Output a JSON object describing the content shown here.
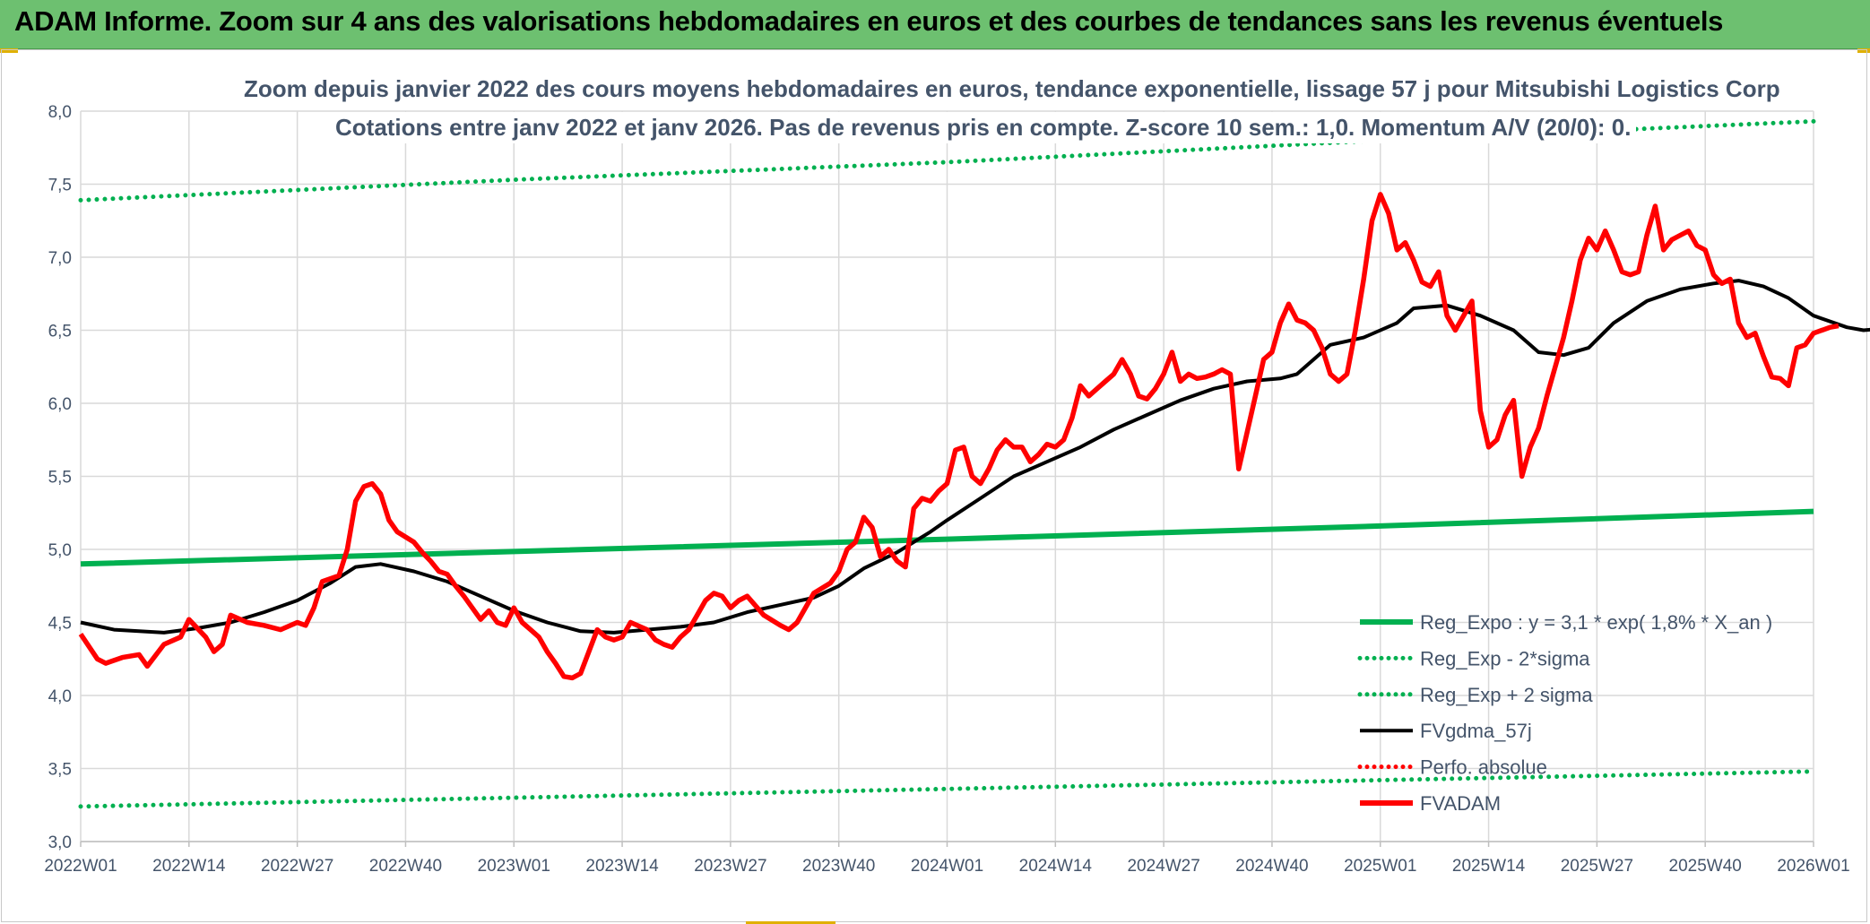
{
  "header": {
    "banner_title": "ADAM Informe. Zoom sur 4 ans des valorisations hebdomadaires en euros et des courbes de tendances sans les revenus éventuels"
  },
  "chart_data": {
    "type": "line",
    "subtitle_line1": "Zoom depuis janvier 2022 des cours moyens hebdomadaires en euros, tendance exponentielle, lissage 57 j pour Mitsubishi Logistics Corp",
    "subtitle_line2": "Cotations entre janv 2022 et janv 2026. Pas de revenus pris en compte. Z-score 10 sem.: 1,0. Momentum A/V (20/0): 0.",
    "ylim": [
      3.0,
      8.0
    ],
    "y_ticks": [
      "3,0",
      "3,5",
      "4,0",
      "4,5",
      "5,0",
      "5,5",
      "6,0",
      "6,5",
      "7,0",
      "7,5",
      "8,0"
    ],
    "x_range_weeks": [
      0,
      208
    ],
    "x_ticks": [
      {
        "label": "2022W01",
        "week": 0
      },
      {
        "label": "2022W14",
        "week": 13
      },
      {
        "label": "2022W27",
        "week": 26
      },
      {
        "label": "2022W40",
        "week": 39
      },
      {
        "label": "2023W01",
        "week": 52
      },
      {
        "label": "2023W14",
        "week": 65
      },
      {
        "label": "2023W27",
        "week": 78
      },
      {
        "label": "2023W40",
        "week": 91
      },
      {
        "label": "2024W01",
        "week": 104
      },
      {
        "label": "2024W14",
        "week": 117
      },
      {
        "label": "2024W27",
        "week": 130
      },
      {
        "label": "2024W40",
        "week": 143
      },
      {
        "label": "2025W01",
        "week": 156
      },
      {
        "label": "2025W14",
        "week": 169
      },
      {
        "label": "2025W27",
        "week": 182
      },
      {
        "label": "2025W40",
        "week": 195
      },
      {
        "label": "2026W01",
        "week": 208
      }
    ],
    "grid": true,
    "legend_position": "bottom-right",
    "legend": [
      {
        "label": "Reg_Expo : y = 3,1 * exp( 1,8% *  X_an )",
        "color": "#00b050",
        "style": "solid"
      },
      {
        "label": "Reg_Exp - 2*sigma",
        "color": "#00b050",
        "style": "dotted"
      },
      {
        "label": "Reg_Exp + 2 sigma",
        "color": "#00b050",
        "style": "dotted"
      },
      {
        "label": "FVgdma_57j",
        "color": "#000000",
        "style": "solid"
      },
      {
        "label": "Perfo. absolue",
        "color": "#ff0000",
        "style": "dotted"
      },
      {
        "label": "FVADAM",
        "color": "#ff0000",
        "style": "solid"
      }
    ],
    "series": [
      {
        "name": "Reg_Expo : y = 3,1 * exp( 1,8% *  X_an )",
        "color": "#00b050",
        "points": [
          [
            0,
            4.9
          ],
          [
            52,
            4.985
          ],
          [
            104,
            5.07
          ],
          [
            156,
            5.16
          ],
          [
            208,
            5.26
          ]
        ]
      },
      {
        "name": "Reg_Exp - 2*sigma",
        "color": "#00b050",
        "points": [
          [
            0,
            3.24
          ],
          [
            52,
            3.3
          ],
          [
            104,
            3.36
          ],
          [
            156,
            3.42
          ],
          [
            208,
            3.48
          ]
        ]
      },
      {
        "name": "Reg_Exp + 2 sigma",
        "color": "#00b050",
        "points": [
          [
            0,
            7.39
          ],
          [
            52,
            7.53
          ],
          [
            104,
            7.65
          ],
          [
            156,
            7.8
          ],
          [
            208,
            7.93
          ]
        ]
      },
      {
        "name": "FVgdma_57j",
        "color": "#000000",
        "points": [
          [
            0,
            4.5
          ],
          [
            4,
            4.45
          ],
          [
            10,
            4.43
          ],
          [
            14,
            4.46
          ],
          [
            18,
            4.5
          ],
          [
            22,
            4.57
          ],
          [
            26,
            4.65
          ],
          [
            30,
            4.77
          ],
          [
            33,
            4.88
          ],
          [
            36,
            4.9
          ],
          [
            40,
            4.85
          ],
          [
            44,
            4.78
          ],
          [
            48,
            4.68
          ],
          [
            52,
            4.58
          ],
          [
            56,
            4.5
          ],
          [
            60,
            4.44
          ],
          [
            64,
            4.43
          ],
          [
            68,
            4.45
          ],
          [
            72,
            4.47
          ],
          [
            76,
            4.5
          ],
          [
            80,
            4.57
          ],
          [
            84,
            4.62
          ],
          [
            88,
            4.67
          ],
          [
            91,
            4.75
          ],
          [
            94,
            4.87
          ],
          [
            98,
            4.98
          ],
          [
            102,
            5.12
          ],
          [
            104,
            5.2
          ],
          [
            108,
            5.35
          ],
          [
            112,
            5.5
          ],
          [
            116,
            5.6
          ],
          [
            120,
            5.7
          ],
          [
            124,
            5.82
          ],
          [
            128,
            5.92
          ],
          [
            132,
            6.02
          ],
          [
            136,
            6.1
          ],
          [
            140,
            6.15
          ],
          [
            144,
            6.17
          ],
          [
            146,
            6.2
          ],
          [
            150,
            6.4
          ],
          [
            154,
            6.45
          ],
          [
            158,
            6.55
          ],
          [
            160,
            6.65
          ],
          [
            164,
            6.67
          ],
          [
            168,
            6.6
          ],
          [
            172,
            6.5
          ],
          [
            175,
            6.35
          ],
          [
            178,
            6.33
          ],
          [
            181,
            6.38
          ],
          [
            184,
            6.55
          ],
          [
            188,
            6.7
          ],
          [
            192,
            6.78
          ],
          [
            196,
            6.82
          ],
          [
            199,
            6.84
          ],
          [
            202,
            6.8
          ],
          [
            205,
            6.72
          ],
          [
            208,
            6.6
          ],
          [
            212,
            6.52
          ],
          [
            214,
            6.5
          ],
          [
            218,
            6.52
          ],
          [
            221,
            6.53
          ]
        ]
      },
      {
        "name": "FVADAM",
        "color": "#ff0000",
        "points": [
          [
            0,
            4.42
          ],
          [
            2,
            4.25
          ],
          [
            3,
            4.22
          ],
          [
            5,
            4.26
          ],
          [
            7,
            4.28
          ],
          [
            8,
            4.2
          ],
          [
            10,
            4.35
          ],
          [
            12,
            4.4
          ],
          [
            13,
            4.52
          ],
          [
            15,
            4.4
          ],
          [
            16,
            4.3
          ],
          [
            17,
            4.35
          ],
          [
            18,
            4.55
          ],
          [
            20,
            4.5
          ],
          [
            22,
            4.48
          ],
          [
            24,
            4.45
          ],
          [
            26,
            4.5
          ],
          [
            27,
            4.48
          ],
          [
            28,
            4.6
          ],
          [
            29,
            4.78
          ],
          [
            31,
            4.82
          ],
          [
            32,
            5.0
          ],
          [
            33,
            5.33
          ],
          [
            34,
            5.43
          ],
          [
            35,
            5.45
          ],
          [
            36,
            5.38
          ],
          [
            37,
            5.2
          ],
          [
            38,
            5.12
          ],
          [
            40,
            5.05
          ],
          [
            41,
            4.98
          ],
          [
            42,
            4.92
          ],
          [
            43,
            4.85
          ],
          [
            44,
            4.83
          ],
          [
            45,
            4.75
          ],
          [
            46,
            4.68
          ],
          [
            47,
            4.6
          ],
          [
            48,
            4.52
          ],
          [
            49,
            4.58
          ],
          [
            50,
            4.5
          ],
          [
            51,
            4.48
          ],
          [
            52,
            4.6
          ],
          [
            53,
            4.5
          ],
          [
            54,
            4.45
          ],
          [
            55,
            4.4
          ],
          [
            56,
            4.3
          ],
          [
            57,
            4.22
          ],
          [
            58,
            4.13
          ],
          [
            59,
            4.12
          ],
          [
            60,
            4.15
          ],
          [
            61,
            4.3
          ],
          [
            62,
            4.45
          ],
          [
            63,
            4.4
          ],
          [
            64,
            4.38
          ],
          [
            65,
            4.4
          ],
          [
            66,
            4.5
          ],
          [
            68,
            4.45
          ],
          [
            69,
            4.38
          ],
          [
            70,
            4.35
          ],
          [
            71,
            4.33
          ],
          [
            72,
            4.4
          ],
          [
            73,
            4.45
          ],
          [
            74,
            4.55
          ],
          [
            75,
            4.65
          ],
          [
            76,
            4.7
          ],
          [
            77,
            4.68
          ],
          [
            78,
            4.6
          ],
          [
            79,
            4.65
          ],
          [
            80,
            4.68
          ],
          [
            82,
            4.55
          ],
          [
            84,
            4.48
          ],
          [
            85,
            4.45
          ],
          [
            86,
            4.5
          ],
          [
            88,
            4.7
          ],
          [
            90,
            4.77
          ],
          [
            91,
            4.85
          ],
          [
            92,
            5.0
          ],
          [
            93,
            5.05
          ],
          [
            94,
            5.22
          ],
          [
            95,
            5.15
          ],
          [
            96,
            4.95
          ],
          [
            97,
            5.0
          ],
          [
            98,
            4.92
          ],
          [
            99,
            4.88
          ],
          [
            100,
            5.28
          ],
          [
            101,
            5.35
          ],
          [
            102,
            5.33
          ],
          [
            103,
            5.4
          ],
          [
            104,
            5.45
          ],
          [
            105,
            5.68
          ],
          [
            106,
            5.7
          ],
          [
            107,
            5.5
          ],
          [
            108,
            5.45
          ],
          [
            109,
            5.55
          ],
          [
            110,
            5.68
          ],
          [
            111,
            5.75
          ],
          [
            112,
            5.7
          ],
          [
            113,
            5.7
          ],
          [
            114,
            5.6
          ],
          [
            115,
            5.65
          ],
          [
            116,
            5.72
          ],
          [
            117,
            5.7
          ],
          [
            118,
            5.75
          ],
          [
            119,
            5.9
          ],
          [
            120,
            6.12
          ],
          [
            121,
            6.05
          ],
          [
            122,
            6.1
          ],
          [
            123,
            6.15
          ],
          [
            124,
            6.2
          ],
          [
            125,
            6.3
          ],
          [
            126,
            6.2
          ],
          [
            127,
            6.05
          ],
          [
            128,
            6.03
          ],
          [
            129,
            6.1
          ],
          [
            130,
            6.2
          ],
          [
            131,
            6.35
          ],
          [
            132,
            6.15
          ],
          [
            133,
            6.2
          ],
          [
            134,
            6.17
          ],
          [
            135,
            6.18
          ],
          [
            136,
            6.2
          ],
          [
            137,
            6.23
          ],
          [
            138,
            6.2
          ],
          [
            139,
            5.55
          ],
          [
            140,
            5.8
          ],
          [
            141,
            6.05
          ],
          [
            142,
            6.3
          ],
          [
            143,
            6.35
          ],
          [
            144,
            6.55
          ],
          [
            145,
            6.68
          ],
          [
            146,
            6.57
          ],
          [
            147,
            6.55
          ],
          [
            148,
            6.5
          ],
          [
            149,
            6.38
          ],
          [
            150,
            6.2
          ],
          [
            151,
            6.15
          ],
          [
            152,
            6.2
          ],
          [
            153,
            6.5
          ],
          [
            154,
            6.85
          ],
          [
            155,
            7.25
          ],
          [
            156,
            7.43
          ],
          [
            157,
            7.3
          ],
          [
            158,
            7.05
          ],
          [
            159,
            7.1
          ],
          [
            160,
            6.98
          ],
          [
            161,
            6.83
          ],
          [
            162,
            6.8
          ],
          [
            163,
            6.9
          ],
          [
            164,
            6.6
          ],
          [
            165,
            6.5
          ],
          [
            166,
            6.6
          ],
          [
            167,
            6.7
          ],
          [
            168,
            5.95
          ],
          [
            169,
            5.7
          ],
          [
            170,
            5.75
          ],
          [
            171,
            5.92
          ],
          [
            172,
            6.02
          ],
          [
            173,
            5.5
          ],
          [
            174,
            5.7
          ],
          [
            175,
            5.83
          ],
          [
            176,
            6.05
          ],
          [
            177,
            6.25
          ],
          [
            178,
            6.45
          ],
          [
            179,
            6.7
          ],
          [
            180,
            6.98
          ],
          [
            181,
            7.13
          ],
          [
            182,
            7.05
          ],
          [
            183,
            7.18
          ],
          [
            184,
            7.05
          ],
          [
            185,
            6.9
          ],
          [
            186,
            6.88
          ],
          [
            187,
            6.9
          ],
          [
            188,
            7.15
          ],
          [
            189,
            7.35
          ],
          [
            190,
            7.05
          ],
          [
            191,
            7.12
          ],
          [
            192,
            7.15
          ],
          [
            193,
            7.18
          ],
          [
            194,
            7.08
          ],
          [
            195,
            7.05
          ],
          [
            196,
            6.88
          ],
          [
            197,
            6.82
          ],
          [
            198,
            6.85
          ],
          [
            199,
            6.55
          ],
          [
            200,
            6.45
          ],
          [
            201,
            6.48
          ],
          [
            202,
            6.32
          ],
          [
            203,
            6.18
          ],
          [
            204,
            6.17
          ],
          [
            205,
            6.12
          ],
          [
            206,
            6.38
          ],
          [
            207,
            6.4
          ],
          [
            208,
            6.48
          ],
          [
            209,
            6.5
          ],
          [
            210,
            6.52
          ],
          [
            211,
            6.53
          ]
        ]
      }
    ]
  }
}
